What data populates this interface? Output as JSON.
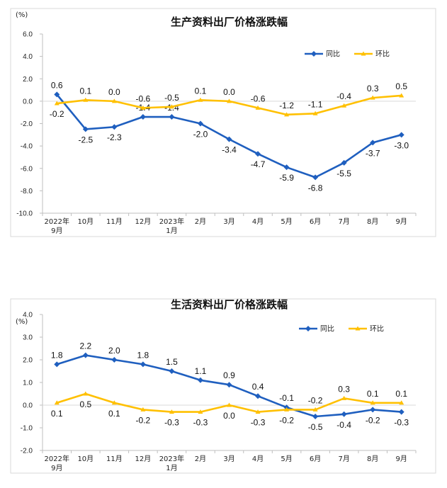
{
  "chart_data": [
    {
      "type": "line",
      "title": "生产资料出厂价格涨跌幅",
      "unit": "(%)",
      "categories": [
        [
          "2022年",
          "9月"
        ],
        [
          "10月"
        ],
        [
          "11月"
        ],
        [
          "12月"
        ],
        [
          "2023年",
          "1月"
        ],
        [
          "2月"
        ],
        [
          "3月"
        ],
        [
          "4月"
        ],
        [
          "5月"
        ],
        [
          "6月"
        ],
        [
          "7月"
        ],
        [
          "8月"
        ],
        [
          "9月"
        ]
      ],
      "ylim": [
        -10,
        6
      ],
      "yticks": [
        "6.0",
        "4.0",
        "2.0",
        "0.0",
        "-2.0",
        "-4.0",
        "-6.0",
        "-8.0",
        "-10.0"
      ],
      "ytick_values": [
        6,
        4,
        2,
        0,
        -2,
        -4,
        -6,
        -8,
        -10
      ],
      "legend_position": "top-right",
      "series": [
        {
          "name": "同比",
          "color": "#1F5FBF",
          "marker": "diamond",
          "values": [
            0.6,
            -2.5,
            -2.3,
            -1.4,
            -1.4,
            -2.0,
            -3.4,
            -4.7,
            -5.9,
            -6.8,
            -5.5,
            -3.7,
            -3.0
          ],
          "labels": [
            "0.6",
            "-2.5",
            "-2.3",
            "-1.4",
            "-1.4",
            "-2.0",
            "-3.4",
            "-4.7",
            "-5.9",
            "-6.8",
            "-5.5",
            "-3.7",
            "-3.0"
          ],
          "label_pos": [
            "above",
            "below",
            "below",
            "above",
            "above",
            "below",
            "below",
            "below",
            "below",
            "below",
            "below",
            "below",
            "below"
          ]
        },
        {
          "name": "环比",
          "color": "#FFC000",
          "marker": "triangle",
          "values": [
            -0.2,
            0.1,
            0.0,
            -0.6,
            -0.5,
            0.1,
            0.0,
            -0.6,
            -1.2,
            -1.1,
            -0.4,
            0.3,
            0.5
          ],
          "labels": [
            "-0.2",
            "0.1",
            "0.0",
            "-0.6",
            "-0.5",
            "0.1",
            "0.0",
            "-0.6",
            "-1.2",
            "-1.1",
            "-0.4",
            "0.3",
            "0.5"
          ],
          "label_pos": [
            "below",
            "above",
            "above",
            "above",
            "above",
            "above",
            "above",
            "above",
            "above",
            "above",
            "above",
            "above",
            "above"
          ]
        }
      ]
    },
    {
      "type": "line",
      "title": "生活资料出厂价格涨跌幅",
      "unit": "(%)",
      "categories": [
        [
          "2022年",
          "9月"
        ],
        [
          "10月"
        ],
        [
          "11月"
        ],
        [
          "12月"
        ],
        [
          "2023年",
          "1月"
        ],
        [
          "2月"
        ],
        [
          "3月"
        ],
        [
          "4月"
        ],
        [
          "5月"
        ],
        [
          "6月"
        ],
        [
          "7月"
        ],
        [
          "8月"
        ],
        [
          "9月"
        ]
      ],
      "ylim": [
        -2,
        4
      ],
      "yticks": [
        "4.0",
        "3.0",
        "2.0",
        "1.0",
        "0.0",
        "-1.0",
        "-2.0"
      ],
      "ytick_values": [
        4,
        3,
        2,
        1,
        0,
        -1,
        -2
      ],
      "legend_position": "top-right",
      "series": [
        {
          "name": "同比",
          "color": "#1F5FBF",
          "marker": "diamond",
          "values": [
            1.8,
            2.2,
            2.0,
            1.8,
            1.5,
            1.1,
            0.9,
            0.4,
            -0.1,
            -0.5,
            -0.4,
            -0.2,
            -0.3
          ],
          "labels": [
            "1.8",
            "2.2",
            "2.0",
            "1.8",
            "1.5",
            "1.1",
            "0.9",
            "0.4",
            "-0.1",
            "-0.5",
            "-0.4",
            "-0.2",
            "-0.3"
          ],
          "label_pos": [
            "above",
            "above",
            "above",
            "above",
            "above",
            "above",
            "above",
            "above",
            "above",
            "below",
            "below",
            "below",
            "below"
          ]
        },
        {
          "name": "环比",
          "color": "#FFC000",
          "marker": "triangle",
          "values": [
            0.1,
            0.5,
            0.1,
            -0.2,
            -0.3,
            -0.3,
            0.0,
            -0.3,
            -0.2,
            -0.2,
            0.3,
            0.1,
            0.1
          ],
          "labels": [
            "0.1",
            "0.5",
            "0.1",
            "-0.2",
            "-0.3",
            "-0.3",
            "0.0",
            "-0.3",
            "-0.2",
            "-0.2",
            "0.3",
            "0.1",
            "0.1"
          ],
          "label_pos": [
            "below",
            "below",
            "below",
            "below",
            "below",
            "below",
            "below",
            "below",
            "below",
            "above",
            "above",
            "above",
            "above"
          ]
        }
      ]
    }
  ]
}
